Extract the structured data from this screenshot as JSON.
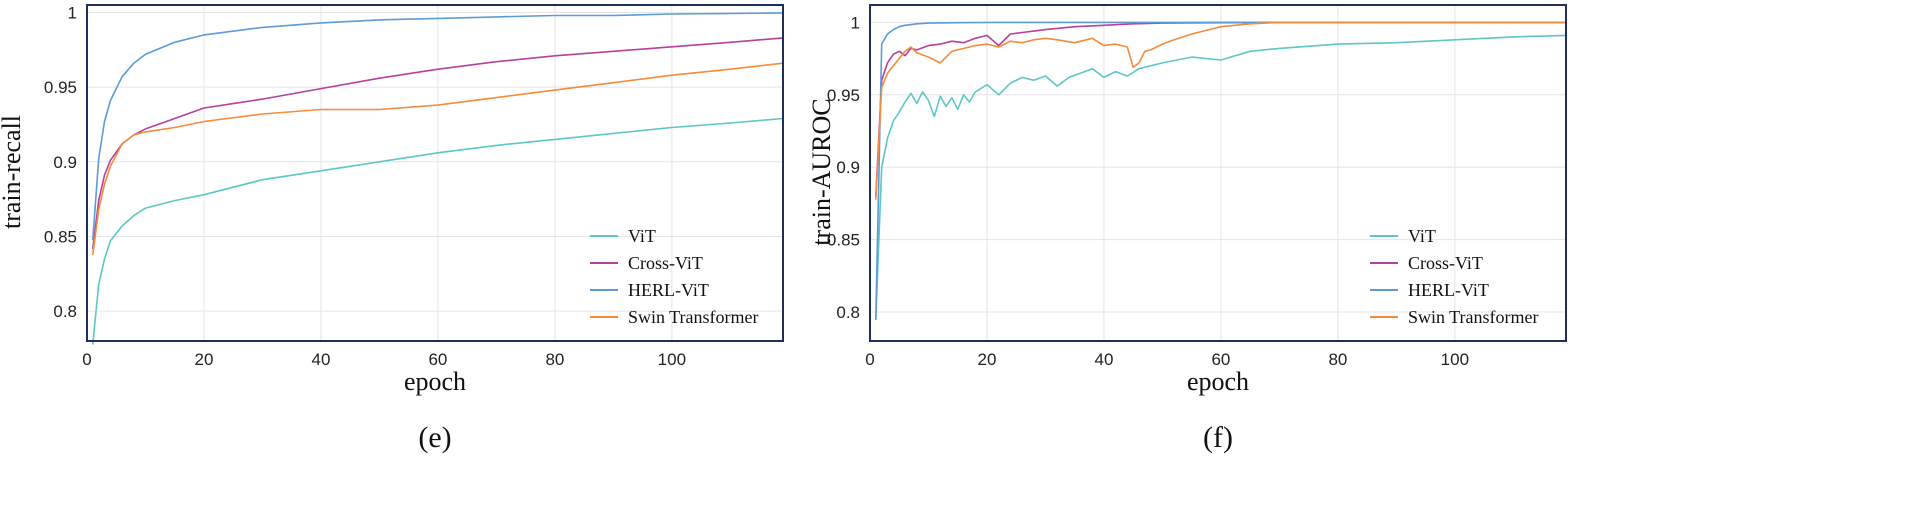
{
  "chart_data": [
    {
      "type": "line",
      "panel_label": "(e)",
      "xlabel": "epoch",
      "ylabel": "train-recall",
      "xlim": [
        0,
        119
      ],
      "ylim": [
        0.78,
        1.005
      ],
      "xticks": [
        0,
        20,
        40,
        60,
        80,
        100
      ],
      "yticks": [
        0.8,
        0.85,
        0.9,
        0.95,
        1
      ],
      "ytick_labels": [
        "0.8",
        "0.85",
        "0.9",
        "0.95",
        "1"
      ],
      "legend_position": "bottom-right",
      "series": [
        {
          "name": "ViT",
          "color": "#5ec6c6",
          "x": [
            1,
            2,
            3,
            4,
            6,
            8,
            10,
            15,
            20,
            30,
            40,
            50,
            60,
            70,
            80,
            90,
            100,
            110,
            119
          ],
          "values": [
            0.778,
            0.818,
            0.835,
            0.847,
            0.857,
            0.864,
            0.869,
            0.874,
            0.878,
            0.888,
            0.894,
            0.9,
            0.906,
            0.911,
            0.915,
            0.919,
            0.923,
            0.926,
            0.929
          ]
        },
        {
          "name": "Cross-ViT",
          "color": "#b8409a",
          "x": [
            1,
            2,
            3,
            4,
            6,
            8,
            10,
            15,
            20,
            25,
            30,
            40,
            50,
            60,
            70,
            80,
            90,
            100,
            110,
            119
          ],
          "values": [
            0.842,
            0.874,
            0.891,
            0.901,
            0.912,
            0.918,
            0.922,
            0.929,
            0.936,
            0.939,
            0.942,
            0.949,
            0.956,
            0.962,
            0.967,
            0.971,
            0.974,
            0.977,
            0.98,
            0.983
          ]
        },
        {
          "name": "HERL-ViT",
          "color": "#5b9bd8",
          "x": [
            1,
            2,
            3,
            4,
            6,
            8,
            10,
            15,
            20,
            30,
            40,
            50,
            60,
            70,
            80,
            90,
            100,
            110,
            119
          ],
          "values": [
            0.848,
            0.902,
            0.927,
            0.941,
            0.957,
            0.966,
            0.972,
            0.98,
            0.985,
            0.99,
            0.993,
            0.995,
            0.996,
            0.997,
            0.998,
            0.998,
            0.999,
            0.9993,
            0.9997
          ]
        },
        {
          "name": "Swin Transformer",
          "color": "#f48c3c",
          "x": [
            1,
            2,
            3,
            4,
            6,
            8,
            10,
            15,
            20,
            30,
            40,
            50,
            60,
            70,
            80,
            90,
            100,
            110,
            119
          ],
          "values": [
            0.838,
            0.868,
            0.885,
            0.897,
            0.912,
            0.918,
            0.92,
            0.923,
            0.927,
            0.932,
            0.935,
            0.935,
            0.938,
            0.943,
            0.948,
            0.953,
            0.958,
            0.962,
            0.966
          ]
        }
      ]
    },
    {
      "type": "line",
      "panel_label": "(f)",
      "xlabel": "epoch",
      "ylabel": "train-AUROC",
      "xlim": [
        0,
        119
      ],
      "ylim": [
        0.78,
        1.012
      ],
      "xticks": [
        0,
        20,
        40,
        60,
        80,
        100
      ],
      "yticks": [
        0.8,
        0.85,
        0.9,
        0.95,
        1
      ],
      "ytick_labels": [
        "0.8",
        "0.85",
        "0.9",
        "0.95",
        "1"
      ],
      "legend_position": "bottom-right",
      "series": [
        {
          "name": "ViT",
          "color": "#5ec6c6",
          "x": [
            1,
            2,
            3,
            4,
            5,
            6,
            7,
            8,
            9,
            10,
            11,
            12,
            13,
            14,
            15,
            16,
            17,
            18,
            20,
            22,
            24,
            26,
            28,
            30,
            32,
            34,
            36,
            38,
            40,
            42,
            44,
            46,
            48,
            50,
            55,
            60,
            65,
            70,
            80,
            90,
            100,
            110,
            119
          ],
          "values": [
            0.795,
            0.9,
            0.92,
            0.932,
            0.938,
            0.945,
            0.951,
            0.944,
            0.952,
            0.946,
            0.935,
            0.949,
            0.942,
            0.948,
            0.94,
            0.95,
            0.945,
            0.952,
            0.957,
            0.95,
            0.958,
            0.962,
            0.96,
            0.963,
            0.956,
            0.962,
            0.965,
            0.968,
            0.962,
            0.966,
            0.963,
            0.968,
            0.97,
            0.972,
            0.976,
            0.974,
            0.98,
            0.982,
            0.985,
            0.986,
            0.988,
            0.99,
            0.991
          ]
        },
        {
          "name": "Cross-ViT",
          "color": "#b8409a",
          "x": [
            1,
            2,
            3,
            4,
            5,
            6,
            7,
            8,
            10,
            12,
            14,
            16,
            18,
            20,
            22,
            24,
            26,
            28,
            30,
            35,
            40,
            45,
            50,
            60,
            70,
            80,
            90,
            100,
            110,
            119
          ],
          "values": [
            0.88,
            0.96,
            0.972,
            0.978,
            0.98,
            0.977,
            0.982,
            0.981,
            0.984,
            0.985,
            0.987,
            0.986,
            0.989,
            0.991,
            0.984,
            0.992,
            0.993,
            0.994,
            0.995,
            0.997,
            0.998,
            0.999,
            0.9995,
            0.9998,
            1.0,
            1.0,
            1.0,
            1.0,
            1.0,
            1.0
          ]
        },
        {
          "name": "HERL-ViT",
          "color": "#5b9bd8",
          "x": [
            1,
            2,
            3,
            4,
            5,
            6,
            8,
            10,
            15,
            20,
            40,
            60,
            80,
            100,
            119
          ],
          "values": [
            0.795,
            0.985,
            0.992,
            0.995,
            0.997,
            0.998,
            0.999,
            0.9995,
            0.9998,
            1.0,
            1.0,
            1.0,
            1.0,
            1.0,
            1.0
          ]
        },
        {
          "name": "Swin Transformer",
          "color": "#f48c3c",
          "x": [
            1,
            2,
            3,
            4,
            5,
            6,
            7,
            8,
            10,
            12,
            14,
            16,
            18,
            20,
            22,
            24,
            26,
            28,
            30,
            32,
            35,
            38,
            40,
            42,
            44,
            45,
            46,
            47,
            48,
            50,
            52,
            55,
            58,
            60,
            65,
            70,
            80,
            90,
            100,
            110,
            119
          ],
          "values": [
            0.878,
            0.955,
            0.965,
            0.97,
            0.975,
            0.98,
            0.983,
            0.979,
            0.976,
            0.972,
            0.98,
            0.982,
            0.984,
            0.985,
            0.983,
            0.987,
            0.986,
            0.988,
            0.989,
            0.988,
            0.986,
            0.989,
            0.984,
            0.985,
            0.983,
            0.969,
            0.972,
            0.98,
            0.981,
            0.985,
            0.988,
            0.992,
            0.995,
            0.997,
            0.999,
            1.0,
            1.0,
            1.0,
            1.0,
            1.0,
            1.0
          ]
        }
      ]
    }
  ]
}
